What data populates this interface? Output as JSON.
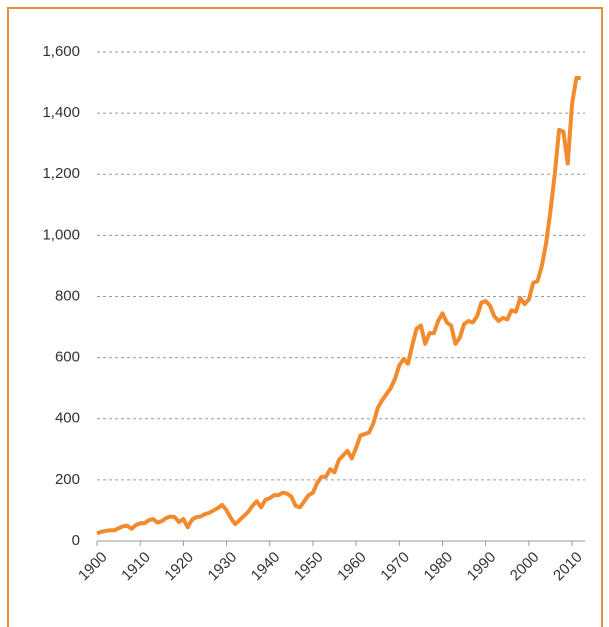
{
  "chart_data": {
    "type": "line",
    "x": [
      1900,
      1901,
      1902,
      1903,
      1904,
      1905,
      1906,
      1907,
      1908,
      1909,
      1910,
      1911,
      1912,
      1913,
      1914,
      1915,
      1916,
      1917,
      1918,
      1919,
      1920,
      1921,
      1922,
      1923,
      1924,
      1925,
      1926,
      1927,
      1928,
      1929,
      1930,
      1931,
      1932,
      1933,
      1934,
      1935,
      1936,
      1937,
      1938,
      1939,
      1940,
      1941,
      1942,
      1943,
      1944,
      1945,
      1946,
      1947,
      1948,
      1949,
      1950,
      1951,
      1952,
      1953,
      1954,
      1955,
      1956,
      1957,
      1958,
      1959,
      1960,
      1961,
      1962,
      1963,
      1964,
      1965,
      1966,
      1967,
      1968,
      1969,
      1970,
      1971,
      1972,
      1973,
      1974,
      1975,
      1976,
      1977,
      1978,
      1979,
      1980,
      1981,
      1982,
      1983,
      1984,
      1985,
      1986,
      1987,
      1988,
      1989,
      1990,
      1991,
      1992,
      1993,
      1994,
      1995,
      1996,
      1997,
      1998,
      1999,
      2000,
      2001,
      2002,
      2003,
      2004,
      2005,
      2006,
      2007,
      2008,
      2009,
      2010,
      2011,
      2012
    ],
    "series": [
      {
        "color": "#f28a2e",
        "values": [
          25,
          30,
          33,
          35,
          35,
          42,
          48,
          50,
          40,
          52,
          58,
          58,
          68,
          72,
          60,
          65,
          75,
          80,
          78,
          62,
          72,
          45,
          70,
          78,
          80,
          88,
          92,
          100,
          108,
          118,
          100,
          75,
          55,
          68,
          82,
          95,
          115,
          130,
          110,
          135,
          140,
          150,
          150,
          158,
          155,
          145,
          115,
          110,
          130,
          150,
          158,
          190,
          210,
          210,
          235,
          225,
          265,
          280,
          295,
          270,
          305,
          345,
          350,
          355,
          385,
          435,
          460,
          480,
          500,
          530,
          575,
          595,
          580,
          640,
          695,
          705,
          645,
          680,
          680,
          720,
          745,
          715,
          705,
          645,
          665,
          710,
          720,
          715,
          735,
          780,
          785,
          770,
          735,
          720,
          730,
          725,
          755,
          750,
          795,
          775,
          790,
          845,
          850,
          900,
          975,
          1080,
          1200,
          1345,
          1340,
          1235,
          1430,
          1515,
          1515
        ]
      }
    ],
    "xlim": [
      1900,
      2013
    ],
    "xticks": [
      1900,
      1910,
      1920,
      1930,
      1940,
      1950,
      1960,
      1970,
      1980,
      1990,
      2000,
      2010
    ],
    "ylim": [
      0,
      1600
    ],
    "yticks": [
      0,
      {
        "value": 200,
        "label": "200"
      },
      400,
      600,
      800,
      {
        "value": 1000,
        "label": "1,000"
      },
      {
        "value": 1200,
        "label": "1,200"
      },
      {
        "value": 1400,
        "label": "1,400"
      },
      {
        "value": 1600,
        "label": "1,600"
      }
    ],
    "grid": true
  }
}
